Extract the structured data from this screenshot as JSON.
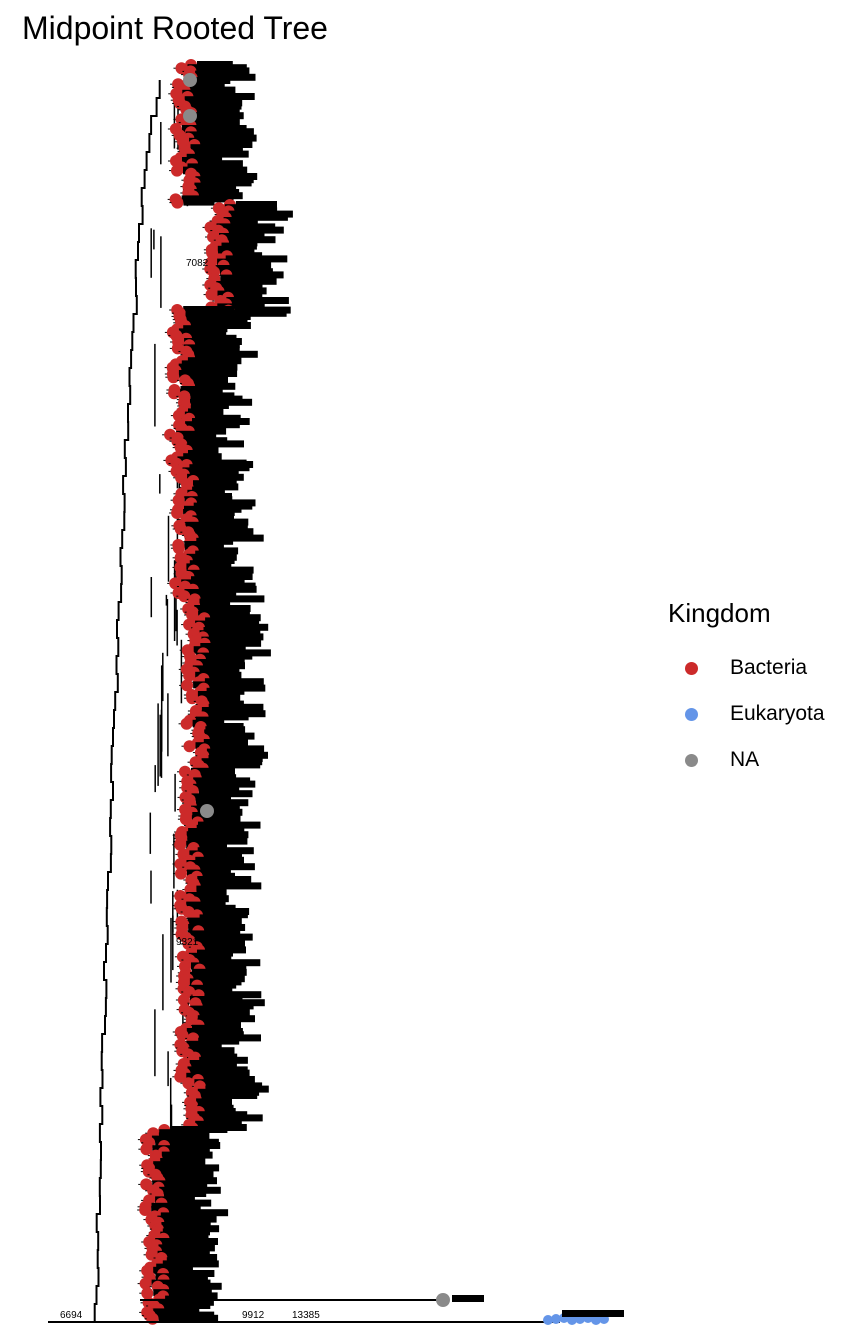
{
  "title": "Midpoint Rooted Tree",
  "legend": {
    "title": "Kingdom",
    "items": [
      {
        "label": "Bacteria",
        "color": "#cc2a2a"
      },
      {
        "label": "Eukaryota",
        "color": "#6495e8"
      },
      {
        "label": "NA",
        "color": "#8a8a8a"
      }
    ]
  },
  "tree": {
    "layout": "rectangular",
    "rooting": "midpoint",
    "branch_color": "#000000",
    "node_labels": [
      {
        "text": "6694",
        "kingdom": "Bacteria"
      },
      {
        "text": "9912",
        "kingdom": "Bacteria"
      },
      {
        "text": "13385",
        "kingdom": "Bacteria"
      },
      {
        "text": "7082",
        "kingdom": "Bacteria"
      },
      {
        "text": "9321",
        "kingdom": "Bacteria"
      }
    ]
  }
}
